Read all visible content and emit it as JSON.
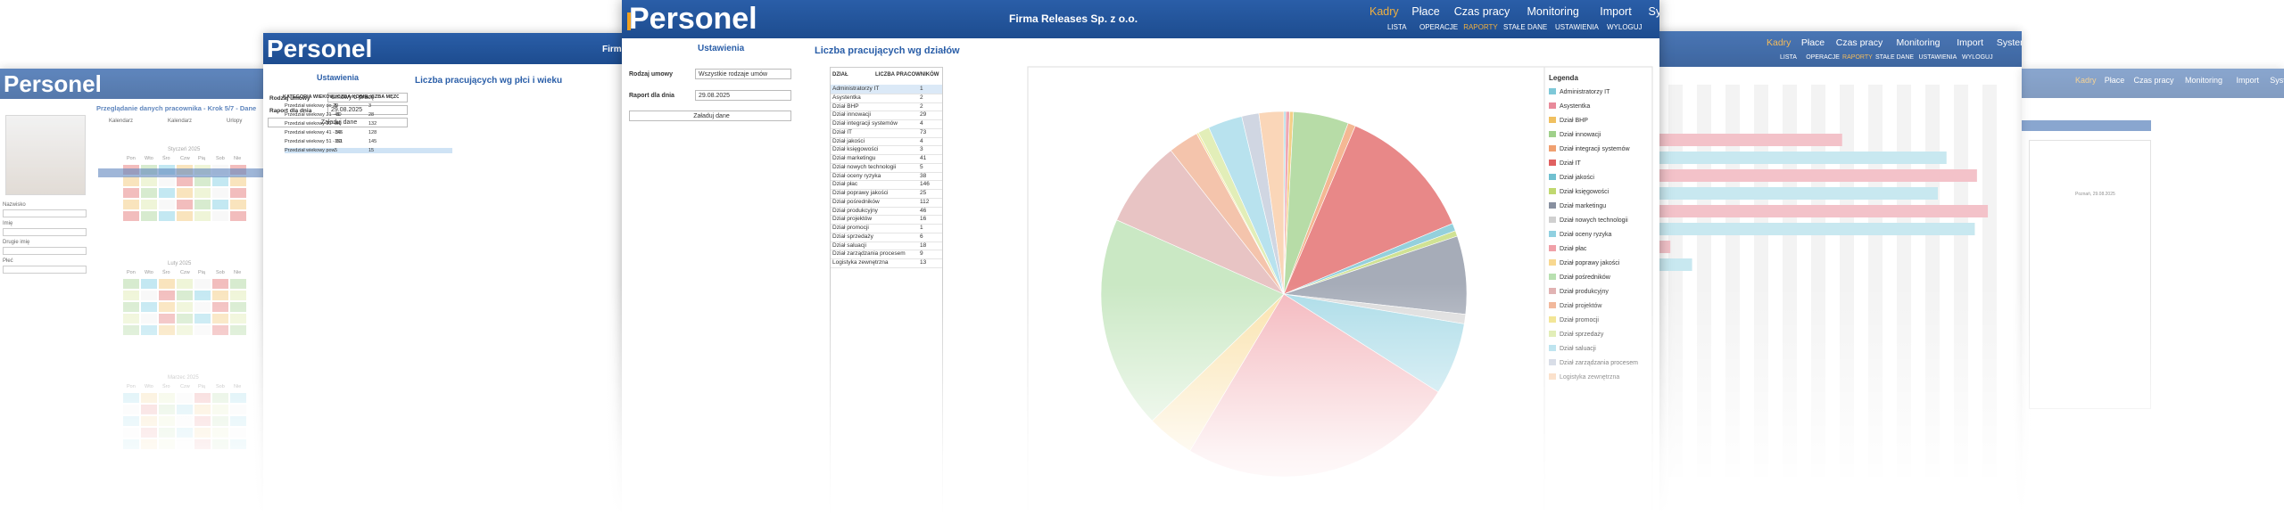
{
  "main": {
    "logo": "Personel",
    "company": "Firma Releases Sp. z o.o.",
    "nav": [
      "Kadry",
      "Płace",
      "Czas pracy",
      "Monitoring",
      "Import",
      "System"
    ],
    "subnav": [
      "LISTA",
      "OPERACJE",
      "RAPORTY",
      "STAŁE DANE",
      "USTAWIENIA",
      "WYLOGUJ"
    ],
    "settings_title": "Ustawienia",
    "fields": [
      {
        "label": "Rodzaj umowy",
        "value": "Wszystkie rodzaje umów"
      },
      {
        "label": "Raport dla dnia",
        "value": "29.08.2025"
      }
    ],
    "button": "Załaduj dane",
    "report_title": "Liczba pracujących wg działów",
    "table_headers": [
      "DZIAŁ",
      "LICZBA PRACOWNIKÓW"
    ],
    "legend_title": "Legenda",
    "rows": [
      {
        "name": "Administratorzy IT",
        "count": 1,
        "color": "#7ec8d8"
      },
      {
        "name": "Asystentka",
        "count": 2,
        "color": "#e88a9a"
      },
      {
        "name": "Dział BHP",
        "count": 2,
        "color": "#f0c060"
      },
      {
        "name": "Dział innowacji",
        "count": 29,
        "color": "#9fd08a"
      },
      {
        "name": "Dział integracji systemów",
        "count": 4,
        "color": "#f0a070"
      },
      {
        "name": "Dział IT",
        "count": 73,
        "color": "#e06060"
      },
      {
        "name": "Dział jakości",
        "count": 4,
        "color": "#70c0d0"
      },
      {
        "name": "Dział księgowości",
        "count": 3,
        "color": "#c0d870"
      },
      {
        "name": "Dział marketingu",
        "count": 41,
        "color": "#8890a0"
      },
      {
        "name": "Dział nowych technologii",
        "count": 5,
        "color": "#d0d0d0"
      },
      {
        "name": "Dział oceny ryzyka",
        "count": 38,
        "color": "#90d0e0"
      },
      {
        "name": "Dział płac",
        "count": 146,
        "color": "#f0a0a8"
      },
      {
        "name": "Dział poprawy jakości",
        "count": 25,
        "color": "#f8d890"
      },
      {
        "name": "Dział pośredników",
        "count": 112,
        "color": "#b8e0b0"
      },
      {
        "name": "Dział produkcyjny",
        "count": 46,
        "color": "#e0b0b0"
      },
      {
        "name": "Dział projektów",
        "count": 16,
        "color": "#f0b090"
      },
      {
        "name": "Dział promocji",
        "count": 1,
        "color": "#f0e080"
      },
      {
        "name": "Dział sprzedaży",
        "count": 6,
        "color": "#d8e8a0"
      },
      {
        "name": "Dział saluacji",
        "count": 18,
        "color": "#a0d8e8"
      },
      {
        "name": "Dział zarządzania procesem",
        "count": 9,
        "color": "#c0c8d8"
      },
      {
        "name": "Logistyka zewnętrzna",
        "count": 13,
        "color": "#f8c8a0"
      }
    ]
  },
  "left": {
    "logo": "Personel",
    "company": "Firma",
    "settings_title": "Ustawienia",
    "fields": [
      {
        "label": "Rodzaj umowy",
        "value": "Umowy o pracę"
      },
      {
        "label": "Raport dla dnia",
        "value": "29.08.2025"
      }
    ],
    "button": "Załaduj dane",
    "report_title": "Liczba pracujących wg płci i wieku",
    "table_headers": [
      "KATEGORIA WIEKOWA",
      "LICZBA KOBIET",
      "LICZBA MĘŻCZYZN"
    ],
    "rows": [
      [
        "Przedział wiekowy do 20",
        "5",
        "3"
      ],
      [
        "Przedział wiekowy 21 - 30",
        "41",
        "28"
      ],
      [
        "Przedział wiekowy 31 - 40",
        "84",
        "132"
      ],
      [
        "Przedział wiekowy 41 - 50",
        "146",
        "128"
      ],
      [
        "Przedział wiekowy 51 - 60",
        "151",
        "145"
      ],
      [
        "Przedział wiekowy powyżej 61",
        "5",
        "15"
      ]
    ]
  },
  "far_left": {
    "logo": "Personel",
    "title": "Przeglądanie danych pracownika - Krok 5/7 - Dane",
    "tabs": [
      "Kalendarz",
      "Kalendarz",
      "Urlopy"
    ],
    "months": [
      "Styczeń 2025",
      "Luty 2025",
      "Marzec 2025"
    ],
    "weekdays": [
      "Pon",
      "Wto",
      "Śro",
      "Czw",
      "Pią",
      "Sob",
      "Nie"
    ],
    "fields": [
      "Nazwisko",
      "Imię",
      "Drugie imię",
      "Płeć"
    ]
  },
  "right": {
    "nav": [
      "Kadry",
      "Płace",
      "Czas pracy",
      "Monitoring",
      "Import",
      "System"
    ],
    "subnav": [
      "LISTA",
      "OPERACJE",
      "RAPORTY",
      "STAŁE DANE",
      "USTAWIENIA",
      "WYLOGUJ"
    ],
    "bars": [
      {
        "value": 84,
        "color": "#f2b8c0"
      },
      {
        "value": 132,
        "color": "#bfe4ee"
      },
      {
        "value": 146,
        "color": "#f2b8c0"
      },
      {
        "value": 128,
        "color": "#bfe4ee"
      },
      {
        "value": 151,
        "color": "#f2b8c0"
      },
      {
        "value": 145,
        "color": "#bfe4ee"
      },
      {
        "value": 5,
        "color": "#f2b8c0"
      },
      {
        "value": 15,
        "color": "#bfe4ee"
      }
    ],
    "xlim": [
      0,
      160
    ]
  },
  "far_right": {
    "nav": [
      "Kadry",
      "Płace",
      "Czas pracy",
      "Monitoring",
      "Import",
      "System"
    ],
    "note": "Poznań, 29.08.2025"
  }
}
